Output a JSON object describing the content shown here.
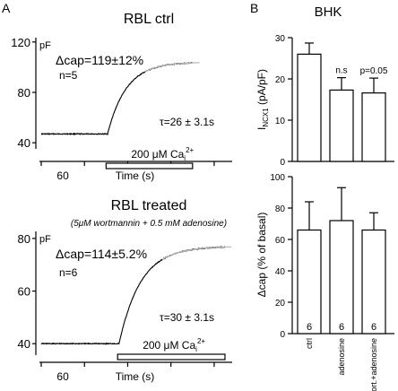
{
  "panels": {
    "a_label": "A",
    "b_label": "B",
    "b_title": "BHK"
  },
  "chart_data": [
    {
      "type": "line",
      "panel": "A",
      "title": "RBL ctrl",
      "subtitle": "",
      "xlabel": "Time (s)",
      "ylabel": "pF",
      "yticks": [
        40,
        80,
        120
      ],
      "ylim": [
        38,
        122
      ],
      "xlim": [
        0,
        260
      ],
      "xtick_label": "60",
      "xtick_positions": [
        0,
        60,
        120,
        180,
        240
      ],
      "annotations": {
        "dcap": "Δcap=119±12%",
        "n": "n=5",
        "tau": "τ=26 ± 3.1s"
      },
      "stimulus": {
        "label": "200 μM Ca",
        "sub": "i",
        "sup": "2+",
        "start": 90,
        "end": 210
      },
      "model": {
        "baseline": 47,
        "plateau": 104,
        "onset": 92,
        "tau": 26,
        "end": 210
      }
    },
    {
      "type": "line",
      "panel": "A",
      "title": "RBL treated",
      "subtitle": "(5μM wortmannin + 0.5 mM adenosine)",
      "xlabel": "Time (s)",
      "ylabel": "pF",
      "yticks": [
        40,
        60,
        80
      ],
      "ylim": [
        37,
        82
      ],
      "xlim": [
        0,
        260
      ],
      "xtick_label": "60",
      "xtick_positions": [
        0,
        60,
        120,
        180,
        240
      ],
      "annotations": {
        "dcap": "Δcap=114±5.2%",
        "n": "n=6",
        "tau": "τ=30 ± 3.1s"
      },
      "stimulus": {
        "label": "200 μM Ca",
        "sub": "i",
        "sup": "2+",
        "start": 106,
        "end": 255
      },
      "model": {
        "baseline": 40,
        "plateau": 77,
        "onset": 108,
        "tau": 30,
        "end": 255
      }
    },
    {
      "type": "bar",
      "panel": "B",
      "title": "",
      "ylabel": "I",
      "ylabel_sub": "NCX1",
      "ylabel_suffix": " (pA/pF)",
      "ylim": [
        0,
        30
      ],
      "yticks": [
        0,
        10,
        20,
        30
      ],
      "categories": [
        "ctrl",
        "adenosine",
        "wort.+adenosine"
      ],
      "values": [
        26,
        17.3,
        16.6
      ],
      "errors": [
        2.7,
        3.0,
        3.6
      ],
      "bar_labels": [
        "",
        "n.s",
        "p=0.05"
      ]
    },
    {
      "type": "bar",
      "panel": "B",
      "title": "",
      "ylabel": "Δcap (% of basal)",
      "ylim": [
        0,
        100
      ],
      "yticks": [
        0,
        20,
        40,
        60,
        80,
        100
      ],
      "categories": [
        "ctrl",
        "adenosine",
        "wort.+adenosine"
      ],
      "values": [
        66,
        72,
        66
      ],
      "errors": [
        18,
        21,
        11
      ],
      "n_labels": [
        "6",
        "6",
        "6"
      ]
    }
  ]
}
